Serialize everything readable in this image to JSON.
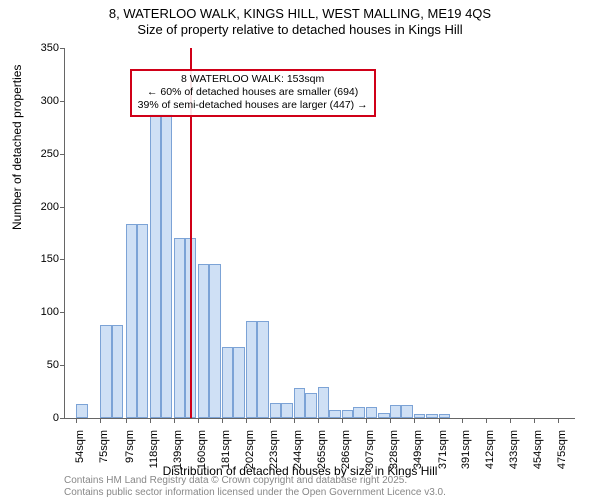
{
  "title": {
    "line1": "8, WATERLOO WALK, KINGS HILL, WEST MALLING, ME19 4QS",
    "line2": "Size of property relative to detached houses in Kings Hill",
    "fontsize": 13
  },
  "chart": {
    "type": "histogram",
    "background_color": "#ffffff",
    "bar_fill": "#cfe0f5",
    "bar_border": "#7ca3d6",
    "axis_color": "#666666",
    "marker_line_color": "#d00018",
    "annotation_border": "#d00018",
    "ylim": [
      0,
      350
    ],
    "ytick_step": 50,
    "yticks": [
      0,
      50,
      100,
      150,
      200,
      250,
      300,
      350
    ],
    "ylabel": "Number of detached properties",
    "xlabel": "Distribution of detached houses by size in Kings Hill",
    "xtick_labels": [
      "54sqm",
      "75sqm",
      "97sqm",
      "118sqm",
      "139sqm",
      "160sqm",
      "181sqm",
      "202sqm",
      "223sqm",
      "244sqm",
      "265sqm",
      "286sqm",
      "307sqm",
      "328sqm",
      "349sqm",
      "371sqm",
      "391sqm",
      "412sqm",
      "433sqm",
      "454sqm",
      "475sqm"
    ],
    "bin_width_sqm": 10,
    "bars": [
      {
        "x": 54,
        "count": 13
      },
      {
        "x": 75,
        "count": 88
      },
      {
        "x": 85,
        "count": 88
      },
      {
        "x": 97,
        "count": 184
      },
      {
        "x": 107,
        "count": 184
      },
      {
        "x": 118,
        "count": 288
      },
      {
        "x": 128,
        "count": 288
      },
      {
        "x": 139,
        "count": 170
      },
      {
        "x": 149,
        "count": 170
      },
      {
        "x": 160,
        "count": 146
      },
      {
        "x": 170,
        "count": 146
      },
      {
        "x": 181,
        "count": 67
      },
      {
        "x": 191,
        "count": 67
      },
      {
        "x": 202,
        "count": 92
      },
      {
        "x": 212,
        "count": 92
      },
      {
        "x": 223,
        "count": 14
      },
      {
        "x": 233,
        "count": 14
      },
      {
        "x": 244,
        "count": 28
      },
      {
        "x": 254,
        "count": 24
      },
      {
        "x": 265,
        "count": 29
      },
      {
        "x": 275,
        "count": 8
      },
      {
        "x": 286,
        "count": 8
      },
      {
        "x": 296,
        "count": 10
      },
      {
        "x": 307,
        "count": 10
      },
      {
        "x": 318,
        "count": 5
      },
      {
        "x": 328,
        "count": 12
      },
      {
        "x": 338,
        "count": 12
      },
      {
        "x": 349,
        "count": 4
      },
      {
        "x": 360,
        "count": 4
      },
      {
        "x": 371,
        "count": 4
      }
    ],
    "x_domain": [
      44,
      490
    ],
    "marker_x": 153,
    "annotation": {
      "line1": "8 WATERLOO WALK: 153sqm",
      "line2": "← 60% of detached houses are smaller (694)",
      "line3": "39% of semi-detached houses are larger (447) →",
      "x": 153,
      "y_top": 330
    }
  },
  "footer": {
    "line1": "Contains HM Land Registry data © Crown copyright and database right 2025.",
    "line2": "Contains public sector information licensed under the Open Government Licence v3.0.",
    "color": "#888888"
  }
}
